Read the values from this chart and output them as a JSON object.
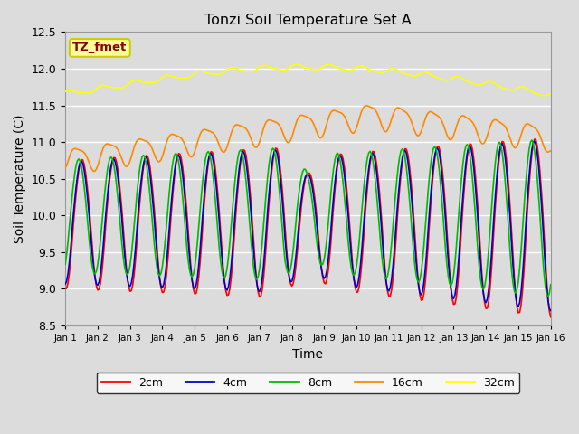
{
  "title": "Tonzi Soil Temperature Set A",
  "xlabel": "Time",
  "ylabel": "Soil Temperature (C)",
  "ylim": [
    8.5,
    12.5
  ],
  "xlim": [
    0,
    15
  ],
  "background_color": "#dcdcdc",
  "plot_bg_color": "#dcdcdc",
  "grid_color": "white",
  "legend_label": "TZ_fmet",
  "legend_bg": "#ffff99",
  "legend_border": "#cccc00",
  "x_tick_labels": [
    "Jan 1",
    "Jan 2",
    "Jan 3",
    "Jan 4",
    "Jan 5",
    "Jan 6",
    "Jan 7",
    "Jan 8",
    "Jan 9",
    "Jan 10",
    "Jan 11",
    "Jan 12",
    "Jan 13",
    "Jan 14",
    "Jan 15",
    "Jan 16"
  ],
  "series_colors": {
    "2cm": "#ff0000",
    "4cm": "#0000cc",
    "8cm": "#00bb00",
    "16cm": "#ff8800",
    "32cm": "#ffff00"
  }
}
